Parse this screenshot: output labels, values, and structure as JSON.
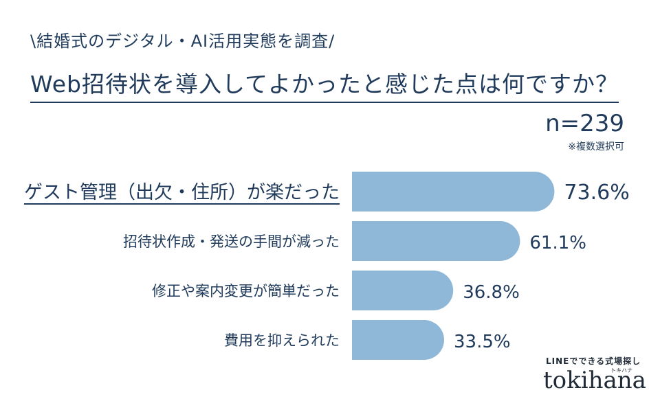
{
  "header": {
    "kicker": "\\結婚式のデジタル・AI活用実態を調査/",
    "question": "Web招待状を導入してよかったと感じた点は何ですか？",
    "sample_size": "n=239",
    "note": "※複数選択可"
  },
  "branding": {
    "sub_label": "LINEでできる式場探し",
    "kana": "トキハナ",
    "logo": "tokihana"
  },
  "chart_data": {
    "type": "bar",
    "orientation": "horizontal",
    "categories": [
      "ゲスト管理（出欠・住所）が楽だった",
      "招待状作成・発送の手間が減った",
      "修正や案内変更が簡単だった",
      "費用を抑えられた"
    ],
    "values": [
      73.6,
      61.1,
      36.8,
      33.5
    ],
    "value_labels": [
      "73.6%",
      "61.1%",
      "36.8%",
      "33.5%"
    ],
    "unit": "%",
    "highlight_index": 0,
    "bar_color": "#8fb8d8",
    "text_color": "#1f3a5a"
  }
}
